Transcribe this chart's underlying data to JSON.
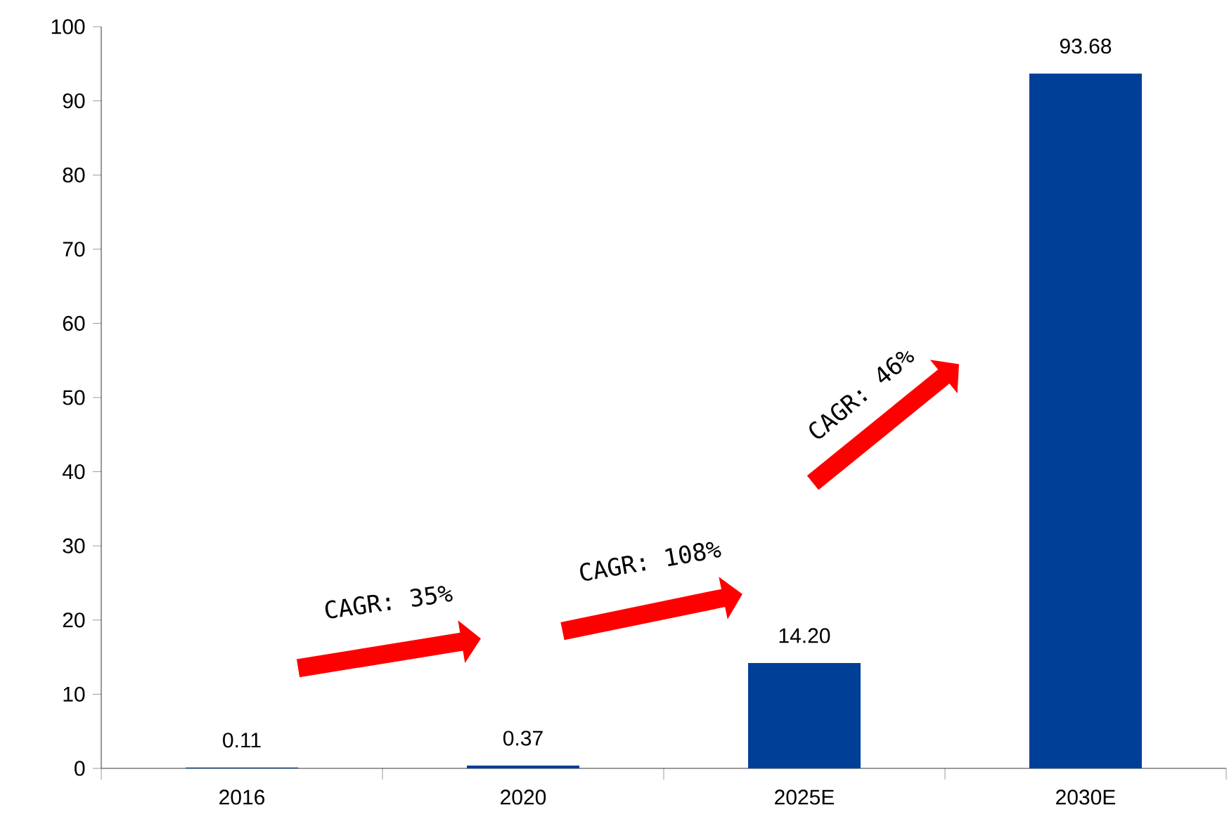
{
  "chart_data": {
    "type": "bar",
    "categories": [
      "2016",
      "2020",
      "2025E",
      "2030E"
    ],
    "values": [
      0.11,
      0.37,
      14.2,
      93.68
    ],
    "value_labels": [
      "0.11",
      "0.37",
      "14.20",
      "93.68"
    ],
    "color": "#003f98",
    "ylim": [
      0,
      100
    ],
    "yticks": [
      0,
      10,
      20,
      30,
      40,
      50,
      60,
      70,
      80,
      90,
      100
    ],
    "annotations": [
      "CAGR: 35%",
      "CAGR: 108%",
      "CAGR: 46%"
    ]
  }
}
